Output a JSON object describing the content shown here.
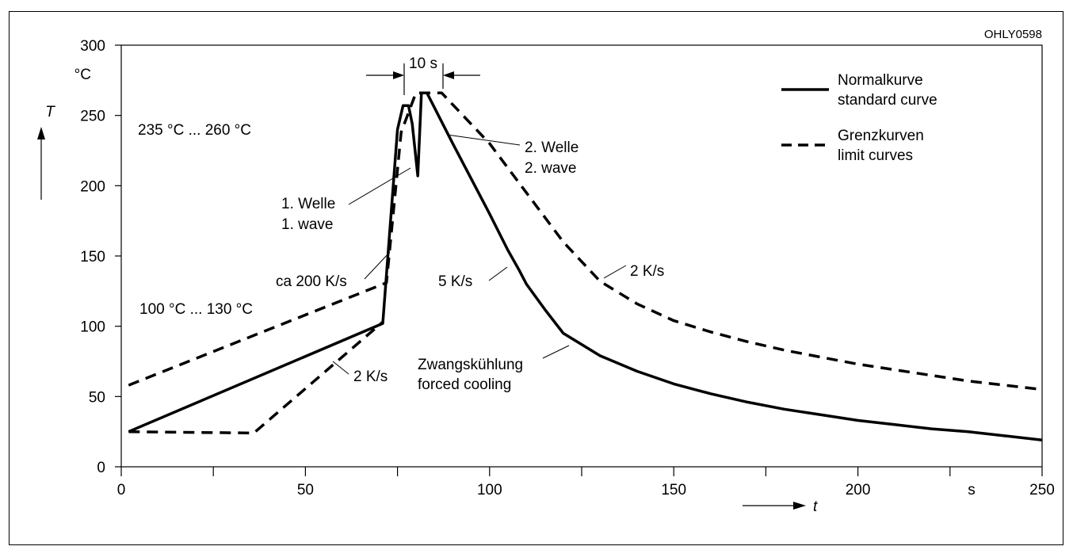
{
  "figure_code": "OHLY0598",
  "chart_data": {
    "type": "line",
    "title": "",
    "xlabel": "t",
    "xunit": "s",
    "ylabel": "T",
    "yunit": "°C",
    "xlim": [
      0,
      250
    ],
    "ylim": [
      0,
      300
    ],
    "xticks": [
      0,
      50,
      100,
      150,
      200,
      250
    ],
    "xtick_labels": [
      "0",
      "50",
      "100",
      "150",
      "200",
      "250"
    ],
    "yticks": [
      0,
      50,
      100,
      150,
      200,
      250,
      300
    ],
    "ytick_labels": [
      "0",
      "50",
      "100",
      "150",
      "200",
      "250",
      "300"
    ],
    "grid": false,
    "legend_position": "top-right",
    "series": [
      {
        "name": "Normalkurve standard curve",
        "style": "solid",
        "x": [
          2,
          71,
          75,
          76.5,
          78,
          79,
          80.5,
          81.5,
          83,
          90,
          100,
          105,
          108,
          110,
          115,
          120,
          130,
          140,
          150,
          160,
          170,
          180,
          190,
          200,
          210,
          220,
          230,
          240,
          250
        ],
        "y": [
          25,
          102,
          240,
          257,
          257,
          244,
          207,
          266,
          266,
          230,
          180,
          154,
          140,
          130,
          112,
          95,
          79,
          68,
          59,
          52,
          46,
          41,
          37,
          33,
          30,
          27,
          25,
          22,
          19
        ]
      },
      {
        "name": "Grenzkurven limit curves",
        "style": "dashed",
        "x": [
          2,
          72,
          76,
          80,
          82,
          87,
          100,
          110,
          120,
          130,
          140,
          150,
          160,
          170,
          180,
          190,
          200,
          210,
          220,
          230,
          240,
          250
        ],
        "y": [
          58,
          131,
          238,
          266,
          266,
          266,
          230,
          195,
          160,
          132,
          116,
          104,
          96,
          89,
          83,
          78,
          73,
          69,
          65,
          61,
          58,
          55
        ]
      },
      {
        "name": "Grenzkurven limit curves (lower)",
        "style": "dashed",
        "x": [
          2,
          36,
          71
        ],
        "y": [
          25,
          24,
          103
        ]
      }
    ],
    "annotations": [
      {
        "text": "10 s"
      },
      {
        "text": "235 °C ... 260 °C"
      },
      {
        "text": "100 °C ... 130 °C"
      },
      {
        "text": "1. Welle"
      },
      {
        "text": "1. wave"
      },
      {
        "text": "2. Welle"
      },
      {
        "text": "2. wave"
      },
      {
        "text": "ca 200 K/s"
      },
      {
        "text": "5 K/s"
      },
      {
        "text": "2 K/s"
      },
      {
        "text": "2 K/s"
      },
      {
        "text": "Zwangskühlung"
      },
      {
        "text": "forced cooling"
      }
    ],
    "legend": [
      {
        "line1": "Normalkurve",
        "line2": "standard curve",
        "style": "solid"
      },
      {
        "line1": "Grenzkurven",
        "line2": "limit curves",
        "style": "dashed"
      }
    ]
  }
}
